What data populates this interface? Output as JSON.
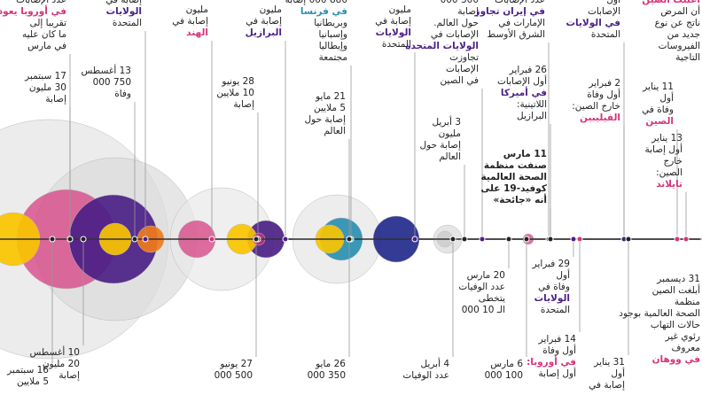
{
  "events_top": [
    {
      "lines": [
        "عدد الإصابات",
        "في أوروبا يعود",
        "تقريبا إلى",
        "ما كان عليه",
        "في مارس"
      ]
    },
    {
      "lines": [
        "17 سبتمبر",
        "30 مليون",
        "إصابة"
      ]
    },
    {
      "lines": [
        "إصابة في",
        "الولايات",
        "المتحدة"
      ]
    },
    {
      "lines": [
        "13 أغسطس",
        "750 000",
        "وفاة"
      ]
    },
    {
      "lines": [
        "مليون",
        "إصابة في",
        "الهند"
      ]
    },
    {
      "lines": [
        "28 يونيو",
        "10 ملايين",
        "إصابة"
      ]
    },
    {
      "lines": [
        "مليون",
        "إصابة في",
        "البرازيل"
      ]
    },
    {
      "lines": [
        "880 000 إصابة",
        "في فرنسا",
        "وبريطانيا",
        "وإسبانيا",
        "وإيطاليا",
        "مجتمعة"
      ]
    },
    {
      "lines": [
        "21 مايو",
        "5 ملايين",
        "إصابة حول",
        "العالم"
      ]
    },
    {
      "lines": [
        "مليون",
        "إصابة في",
        "الولايات",
        "المتحدة"
      ]
    },
    {
      "lines": [
        "300 000",
        "إصابة",
        "حول العالم.",
        "الإصابات في",
        "الولايات المتحدة",
        "تجاوزت",
        "الإصابات",
        "في الصين"
      ]
    },
    {
      "lines": [
        "3 أبريل",
        "مليون",
        "إصابة حول",
        "العالم"
      ]
    },
    {
      "lines": [
        "عدد الإصابات",
        "في إيران تجاوز",
        "الإمارات في",
        "الشرق الأوسط"
      ]
    },
    {
      "lines": [
        "26 فبراير",
        "أول الإصابات",
        "في أميركا",
        "اللاتينية:",
        "البرازيل"
      ]
    },
    {
      "lines": [
        "11 مارس",
        "صنفت منظمة",
        "الصحة العالمية",
        "كوفيد-19 على",
        "أنه «جائحة»"
      ]
    },
    {
      "lines": [
        "2 فبراير",
        "أول وفاة",
        "خارج الصين:",
        "الفيليبين"
      ]
    },
    {
      "lines": [
        "أول",
        "الإصابات",
        "في الولايات",
        "المتحدة"
      ]
    },
    {
      "lines": [
        "أعلنت الصين",
        "أن المرض",
        "ناتج عن نوع",
        "جديد من",
        "الفيروسات",
        "التاجية"
      ]
    },
    {
      "lines": [
        "11 يناير",
        "أول",
        "وفاة في",
        "الصين"
      ]
    },
    {
      "lines": [
        "13 يناير",
        "أول إصابة",
        "خارج",
        "الصين:",
        "تايلاند"
      ]
    }
  ],
  "events_bottom": [
    {
      "lines": [
        "16 سبتمبر",
        "5 ملايين"
      ]
    },
    {
      "lines": [
        "10 أغسطس",
        "20 مليون",
        "إصابة"
      ]
    },
    {
      "lines": [
        "27 يونيو",
        "500 000"
      ]
    },
    {
      "lines": [
        "26 مايو",
        "350 000"
      ]
    },
    {
      "lines": [
        "4 أبريل",
        "عدد الوفيات"
      ]
    },
    {
      "lines": [
        "20 مارس",
        "عدد الوفيات",
        "يتخطى",
        "الـ 10 000"
      ]
    },
    {
      "lines": [
        "6 مارس",
        "100 000"
      ]
    },
    {
      "lines": [
        "29 فبراير",
        "أول",
        "وفاة في",
        "الولايات",
        "المتحدة"
      ]
    },
    {
      "lines": [
        "14 فبراير",
        "أول وفاة",
        "في أوروبا:",
        "أول إصابة"
      ]
    },
    {
      "lines": [
        "31 يناير",
        "أول",
        "إصابة في"
      ]
    },
    {
      "lines": [
        "31 ديسمبر",
        "أبلغت الصين",
        "منظمة",
        "الصحة العالمية بوجود",
        "حالات التهاب",
        "رئوي غير",
        "معروف",
        "في ووهان"
      ]
    }
  ]
}
